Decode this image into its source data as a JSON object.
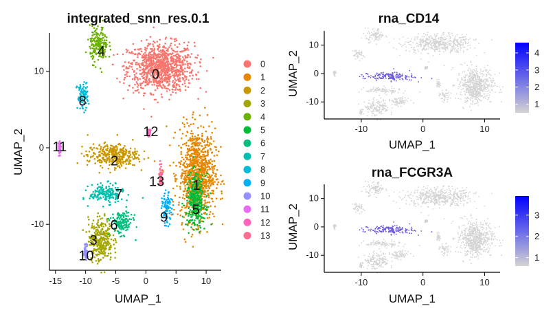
{
  "chart_data": [
    {
      "type": "scatter",
      "title": "integrated_snn_res.0.1",
      "xlabel": "UMAP_1",
      "ylabel": "UMAP_2",
      "xlim": [
        -16,
        12.5
      ],
      "ylim": [
        -16,
        15
      ],
      "xticks": [
        -15,
        -10,
        -5,
        0,
        5,
        10
      ],
      "yticks": [
        -10,
        0,
        10
      ],
      "legend_position": "right",
      "series": [
        {
          "name": "0",
          "color": "#F8766D",
          "center": [
            2.5,
            10.5
          ],
          "spread": [
            5.5,
            3.2
          ],
          "label_at": [
            1.6,
            9.5
          ]
        },
        {
          "name": "1",
          "color": "#E58700",
          "center": [
            8.5,
            -3.5
          ],
          "spread": [
            3.0,
            6.0
          ],
          "label_at": [
            8.4,
            -5.0
          ]
        },
        {
          "name": "2",
          "color": "#C99800",
          "center": [
            -5.5,
            -1.0
          ],
          "spread": [
            4.2,
            1.5
          ],
          "label_at": [
            -5.2,
            -1.8
          ]
        },
        {
          "name": "3",
          "color": "#A3A500",
          "center": [
            -7.5,
            -12.0
          ],
          "spread": [
            2.0,
            2.8
          ],
          "label_at": [
            -8.7,
            -12.2
          ]
        },
        {
          "name": "4",
          "color": "#6BB100",
          "center": [
            -7.8,
            13.5
          ],
          "spread": [
            1.5,
            2.3
          ],
          "label_at": [
            -7.4,
            12.5
          ]
        },
        {
          "name": "5",
          "color": "#00BA38",
          "center": [
            8.3,
            -7.0
          ],
          "spread": [
            1.6,
            3.5
          ],
          "label_at": [
            8.3,
            -8.2
          ]
        },
        {
          "name": "6",
          "color": "#00BF7D",
          "center": [
            -4.0,
            -9.8
          ],
          "spread": [
            1.8,
            1.5
          ],
          "label_at": [
            -5.3,
            -10.2
          ]
        },
        {
          "name": "7",
          "color": "#00C0AF",
          "center": [
            -6.5,
            -6.0
          ],
          "spread": [
            2.8,
            1.2
          ],
          "label_at": [
            -4.5,
            -6.2
          ]
        },
        {
          "name": "8",
          "color": "#00BCD8",
          "center": [
            -10.5,
            6.8
          ],
          "spread": [
            0.9,
            1.8
          ],
          "label_at": [
            -10.5,
            6.0
          ]
        },
        {
          "name": "9",
          "color": "#00B0F6",
          "center": [
            3.5,
            -8.0
          ],
          "spread": [
            0.8,
            2.0
          ],
          "label_at": [
            3.0,
            -9.2
          ]
        },
        {
          "name": "10",
          "color": "#9590FF",
          "center": [
            -10.0,
            -13.5
          ],
          "spread": [
            0.3,
            1.0
          ],
          "label_at": [
            -9.9,
            -14.2
          ]
        },
        {
          "name": "11",
          "color": "#E76BF3",
          "center": [
            -14.3,
            0.0
          ],
          "spread": [
            0.2,
            0.9
          ],
          "label_at": [
            -14.3,
            0.0
          ]
        },
        {
          "name": "12",
          "color": "#FF62BC",
          "center": [
            0.5,
            2.0
          ],
          "spread": [
            0.25,
            0.4
          ],
          "label_at": [
            0.8,
            2.0
          ]
        },
        {
          "name": "13",
          "color": "#FF6C91",
          "center": [
            2.5,
            -3.5
          ],
          "spread": [
            0.3,
            1.5
          ],
          "label_at": [
            1.8,
            -4.5
          ]
        }
      ]
    },
    {
      "type": "scatter",
      "title": "rna_CD14",
      "xlabel": "UMAP_1",
      "ylabel": "UMAP_2",
      "xlim": [
        -16,
        12.5
      ],
      "ylim": [
        -16,
        15
      ],
      "xticks": [
        -10,
        0,
        10
      ],
      "yticks": [
        -10,
        0,
        10
      ],
      "colorbar": {
        "min": 0.5,
        "max": 4.6,
        "ticks": [
          1,
          2,
          3,
          4
        ],
        "low_color": "#D3D3D3",
        "high_color": "#0000FF"
      }
    },
    {
      "type": "scatter",
      "title": "rna_FCGR3A",
      "xlabel": "UMAP_1",
      "ylabel": "UMAP_2",
      "xlim": [
        -16,
        12.5
      ],
      "ylim": [
        -16,
        15
      ],
      "xticks": [
        -10,
        0,
        10
      ],
      "yticks": [
        -10,
        0,
        10
      ],
      "colorbar": {
        "min": 0.6,
        "max": 3.9,
        "ticks": [
          1,
          2,
          3
        ],
        "low_color": "#D3D3D3",
        "high_color": "#0000FF"
      }
    }
  ]
}
